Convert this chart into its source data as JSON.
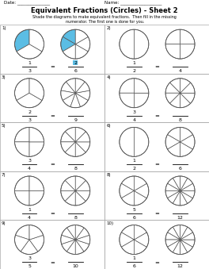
{
  "title": "Equivalent Fractions (Circles) - Sheet 2",
  "subtitle": "Shade the diagrams to make equivalent fractions.  Then fill in the missing\nnumerator. The first one is done for you.",
  "date_label": "Date: _______________",
  "name_label": "Name: ___________________",
  "problems": [
    {
      "num": "1)",
      "slices1": 3,
      "shaded1": 1,
      "slices2": 6,
      "shaded2": 2,
      "highlight": true
    },
    {
      "num": "2)",
      "slices1": 2,
      "shaded1": 0,
      "slices2": 4,
      "shaded2": 0,
      "highlight": false
    },
    {
      "num": "3)",
      "slices1": 3,
      "shaded1": 0,
      "slices2": 9,
      "shaded2": 0,
      "highlight": false
    },
    {
      "num": "4)",
      "slices1": 4,
      "shaded1": 0,
      "slices2": 8,
      "shaded2": 0,
      "highlight": false
    },
    {
      "num": "5)",
      "slices1": 4,
      "shaded1": 0,
      "slices2": 8,
      "shaded2": 0,
      "highlight": false
    },
    {
      "num": "6)",
      "slices1": 2,
      "shaded1": 0,
      "slices2": 6,
      "shaded2": 0,
      "highlight": false
    },
    {
      "num": "7)",
      "slices1": 4,
      "shaded1": 0,
      "slices2": 8,
      "shaded2": 0,
      "highlight": false
    },
    {
      "num": "8)",
      "slices1": 6,
      "shaded1": 0,
      "slices2": 12,
      "shaded2": 0,
      "highlight": false
    },
    {
      "num": "9)",
      "slices1": 5,
      "shaded1": 0,
      "slices2": 10,
      "shaded2": 0,
      "highlight": false
    },
    {
      "num": "10)",
      "slices1": 6,
      "shaded1": 0,
      "slices2": 12,
      "shaded2": 0,
      "highlight": false
    }
  ],
  "fraction_labels": [
    [
      "1",
      "3",
      "2",
      "6"
    ],
    [
      "1",
      "2",
      "",
      "4"
    ],
    [
      "2",
      "3",
      "",
      "9"
    ],
    [
      "3",
      "4",
      "",
      "8"
    ],
    [
      "3",
      "4",
      "",
      "8"
    ],
    [
      "1",
      "2",
      "",
      "6"
    ],
    [
      "1",
      "4",
      "",
      "8"
    ],
    [
      "5",
      "6",
      "",
      "12"
    ],
    [
      "3",
      "5",
      "",
      "10"
    ],
    [
      "1",
      "6",
      "",
      "12"
    ]
  ],
  "highlight_color": "#5bbde4",
  "bg_color": "#ffffff",
  "border_color": "#aaaaaa",
  "line_color": "#555555"
}
